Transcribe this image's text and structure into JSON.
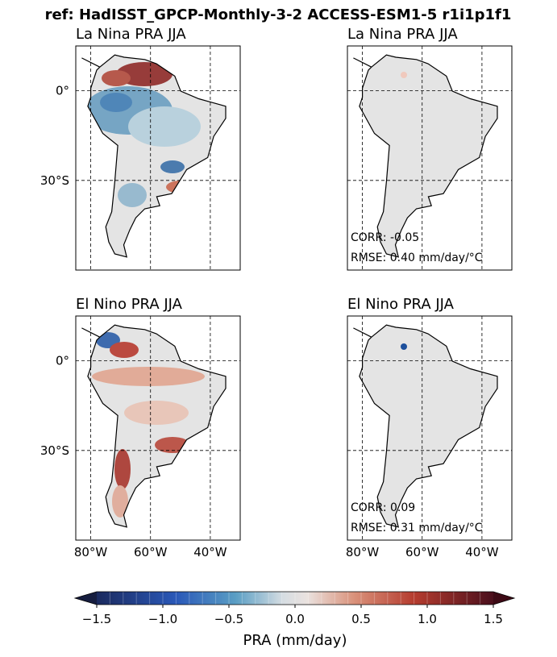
{
  "title": "ref: HadISST_GPCP-Monthly-3-2 ACCESS-ESM1-5 r1i1p1f1",
  "chart_data": [
    {
      "type": "map",
      "title": "La Nina PRA JJA",
      "xlim": [
        -85,
        -30
      ],
      "ylim": [
        -60,
        15
      ],
      "xticks": [
        -80,
        -60,
        -40
      ],
      "yticks": [
        {
          "value": 0,
          "label": "0°"
        },
        {
          "value": -30,
          "label": "30°S"
        }
      ]
    },
    {
      "type": "map",
      "title": "La Nina PRA JJA",
      "xlim": [
        -85,
        -30
      ],
      "ylim": [
        -60,
        15
      ],
      "xticks": [
        -80,
        -60,
        -40
      ],
      "yticks": [
        0,
        -30
      ],
      "annotations": [
        "CORR: -0.05",
        "RMSE: 0.40 mm/day/°C"
      ]
    },
    {
      "type": "map",
      "title": "El Nino PRA JJA",
      "xlim": [
        -85,
        -30
      ],
      "ylim": [
        -60,
        15
      ],
      "xticks": [
        {
          "value": -80,
          "label": "80°W"
        },
        {
          "value": -60,
          "label": "60°W"
        },
        {
          "value": -40,
          "label": "40°W"
        }
      ],
      "yticks": [
        {
          "value": 0,
          "label": "0°"
        },
        {
          "value": -30,
          "label": "30°S"
        }
      ]
    },
    {
      "type": "map",
      "title": "El Nino PRA JJA",
      "xlim": [
        -85,
        -30
      ],
      "ylim": [
        -60,
        15
      ],
      "xticks": [
        {
          "value": -80,
          "label": "80°W"
        },
        {
          "value": -60,
          "label": "60°W"
        },
        {
          "value": -40,
          "label": "40°W"
        }
      ],
      "yticks": [
        0,
        -30
      ],
      "annotations": [
        "CORR: 0.09",
        "RMSE: 0.31 mm/day/°C"
      ]
    }
  ],
  "colorbar": {
    "label": "PRA (mm/day)",
    "lim": [
      -1.5,
      1.5
    ],
    "ticks": [
      {
        "value": -1.5,
        "label": "−1.5"
      },
      {
        "value": -1.0,
        "label": "−1.0"
      },
      {
        "value": -0.5,
        "label": "−0.5"
      },
      {
        "value": 0,
        "label": "0.0"
      },
      {
        "value": 0.5,
        "label": "0.5"
      },
      {
        "value": 1.0,
        "label": "1.0"
      },
      {
        "value": 1.5,
        "label": "1.5"
      }
    ]
  }
}
